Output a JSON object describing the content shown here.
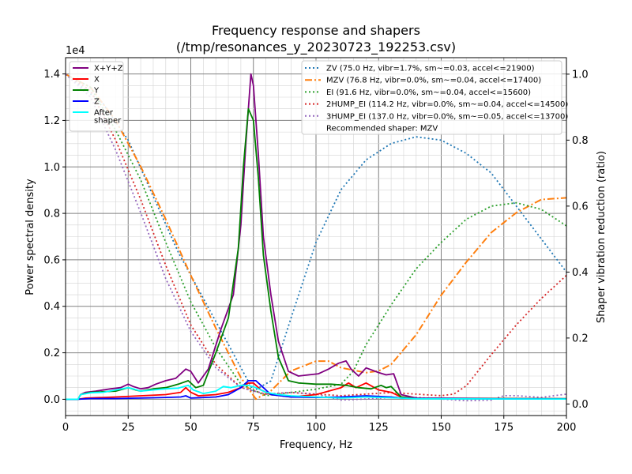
{
  "chart_data": {
    "type": "line",
    "title_line1": "Frequency response and shapers",
    "title_line2": "(/tmp/resonances_y_20230723_192253.csv)",
    "xlabel": "Frequency, Hz",
    "ylabel": "Power spectral density",
    "y2label": "Shaper vibration reduction (ratio)",
    "y_offset_label": "1e4",
    "xlim": [
      0,
      200
    ],
    "ylim": [
      -0.07,
      1.47
    ],
    "y2lim": [
      -0.035,
      1.05
    ],
    "grid": true,
    "x_ticks": [
      0,
      25,
      50,
      75,
      100,
      125,
      150,
      175,
      200
    ],
    "y_ticks": [
      0.0,
      0.2,
      0.4,
      0.6,
      0.8,
      1.0,
      1.2,
      1.4
    ],
    "y2_ticks": [
      0.0,
      0.2,
      0.4,
      0.6,
      0.8,
      1.0
    ],
    "legend_left_placement": "upper-left",
    "legend_right_placement": "upper-right",
    "recommended_note": "Recommended shaper: MZV",
    "psd_series": [
      {
        "name": "X+Y+Z",
        "color": "#800080",
        "values": [
          [
            0,
            0
          ],
          [
            5,
            0
          ],
          [
            6,
            0.02
          ],
          [
            8,
            0.03
          ],
          [
            12,
            0.035
          ],
          [
            18,
            0.045
          ],
          [
            22,
            0.05
          ],
          [
            25,
            0.065
          ],
          [
            27,
            0.055
          ],
          [
            30,
            0.045
          ],
          [
            33,
            0.05
          ],
          [
            36,
            0.065
          ],
          [
            40,
            0.08
          ],
          [
            44,
            0.09
          ],
          [
            48,
            0.13
          ],
          [
            50,
            0.12
          ],
          [
            53,
            0.07
          ],
          [
            57,
            0.13
          ],
          [
            62,
            0.3
          ],
          [
            67,
            0.45
          ],
          [
            70,
            0.75
          ],
          [
            72,
            1.1
          ],
          [
            74,
            1.4
          ],
          [
            75,
            1.35
          ],
          [
            77,
            1.05
          ],
          [
            79,
            0.7
          ],
          [
            82,
            0.45
          ],
          [
            85,
            0.25
          ],
          [
            89,
            0.12
          ],
          [
            93,
            0.1
          ],
          [
            97,
            0.105
          ],
          [
            101,
            0.11
          ],
          [
            105,
            0.13
          ],
          [
            109,
            0.155
          ],
          [
            112,
            0.165
          ],
          [
            114,
            0.13
          ],
          [
            117,
            0.1
          ],
          [
            120,
            0.135
          ],
          [
            125,
            0.115
          ],
          [
            128,
            0.105
          ],
          [
            131,
            0.11
          ],
          [
            134,
            0.02
          ],
          [
            140,
            0.005
          ],
          [
            200,
            0.002
          ]
        ]
      },
      {
        "name": "X",
        "color": "#ff0000",
        "values": [
          [
            0,
            0
          ],
          [
            5,
            0
          ],
          [
            8,
            0.005
          ],
          [
            20,
            0.01
          ],
          [
            30,
            0.015
          ],
          [
            40,
            0.02
          ],
          [
            46,
            0.03
          ],
          [
            48,
            0.05
          ],
          [
            50,
            0.03
          ],
          [
            53,
            0.015
          ],
          [
            60,
            0.02
          ],
          [
            65,
            0.03
          ],
          [
            70,
            0.05
          ],
          [
            73,
            0.07
          ],
          [
            75,
            0.07
          ],
          [
            78,
            0.04
          ],
          [
            82,
            0.02
          ],
          [
            90,
            0.01
          ],
          [
            100,
            0.02
          ],
          [
            110,
            0.05
          ],
          [
            113,
            0.07
          ],
          [
            116,
            0.05
          ],
          [
            120,
            0.07
          ],
          [
            125,
            0.04
          ],
          [
            130,
            0.03
          ],
          [
            134,
            0.01
          ],
          [
            140,
            0.003
          ],
          [
            200,
            0.002
          ]
        ]
      },
      {
        "name": "Y",
        "color": "#008000",
        "values": [
          [
            0,
            0
          ],
          [
            5,
            0
          ],
          [
            6,
            0.02
          ],
          [
            10,
            0.03
          ],
          [
            20,
            0.035
          ],
          [
            25,
            0.05
          ],
          [
            28,
            0.04
          ],
          [
            30,
            0.035
          ],
          [
            35,
            0.045
          ],
          [
            40,
            0.05
          ],
          [
            45,
            0.065
          ],
          [
            49,
            0.08
          ],
          [
            52,
            0.05
          ],
          [
            55,
            0.06
          ],
          [
            60,
            0.2
          ],
          [
            65,
            0.35
          ],
          [
            69,
            0.65
          ],
          [
            71,
            1.0
          ],
          [
            73,
            1.25
          ],
          [
            75,
            1.2
          ],
          [
            77,
            0.95
          ],
          [
            79,
            0.62
          ],
          [
            82,
            0.38
          ],
          [
            85,
            0.18
          ],
          [
            89,
            0.08
          ],
          [
            93,
            0.07
          ],
          [
            100,
            0.065
          ],
          [
            106,
            0.065
          ],
          [
            112,
            0.06
          ],
          [
            117,
            0.05
          ],
          [
            122,
            0.045
          ],
          [
            126,
            0.06
          ],
          [
            128,
            0.05
          ],
          [
            130,
            0.055
          ],
          [
            134,
            0.01
          ],
          [
            140,
            0.003
          ],
          [
            200,
            0.002
          ]
        ]
      },
      {
        "name": "Z",
        "color": "#0000ff",
        "values": [
          [
            0,
            0
          ],
          [
            5,
            0
          ],
          [
            10,
            0.003
          ],
          [
            20,
            0.003
          ],
          [
            30,
            0.005
          ],
          [
            40,
            0.008
          ],
          [
            46,
            0.01
          ],
          [
            48,
            0.015
          ],
          [
            50,
            0.005
          ],
          [
            60,
            0.01
          ],
          [
            65,
            0.02
          ],
          [
            70,
            0.05
          ],
          [
            73,
            0.08
          ],
          [
            76,
            0.08
          ],
          [
            79,
            0.05
          ],
          [
            82,
            0.02
          ],
          [
            90,
            0.01
          ],
          [
            100,
            0.008
          ],
          [
            110,
            0.01
          ],
          [
            120,
            0.015
          ],
          [
            130,
            0.01
          ],
          [
            134,
            0.005
          ],
          [
            140,
            0.003
          ],
          [
            200,
            0.001
          ]
        ]
      },
      {
        "name": "After\nshaper",
        "color": "#00ffff",
        "values": [
          [
            0,
            0
          ],
          [
            5,
            0
          ],
          [
            6,
            0.02
          ],
          [
            10,
            0.028
          ],
          [
            15,
            0.03
          ],
          [
            20,
            0.04
          ],
          [
            25,
            0.05
          ],
          [
            27,
            0.045
          ],
          [
            30,
            0.035
          ],
          [
            35,
            0.04
          ],
          [
            40,
            0.045
          ],
          [
            45,
            0.048
          ],
          [
            49,
            0.06
          ],
          [
            51,
            0.04
          ],
          [
            55,
            0.025
          ],
          [
            60,
            0.035
          ],
          [
            63,
            0.055
          ],
          [
            66,
            0.05
          ],
          [
            70,
            0.06
          ],
          [
            73,
            0.06
          ],
          [
            76,
            0.05
          ],
          [
            80,
            0.03
          ],
          [
            85,
            0.02
          ],
          [
            90,
            0.015
          ],
          [
            100,
            0.01
          ],
          [
            110,
            0.005
          ],
          [
            120,
            0.01
          ],
          [
            134,
            0.005
          ],
          [
            140,
            0.002
          ],
          [
            200,
            0.001
          ]
        ]
      }
    ],
    "shapers": [
      {
        "name": "ZV (75.0 Hz, vibr=1.7%, sm~=0.03, accel<=21900)",
        "color": "#1f77b4",
        "dash": "2,3",
        "width": 1.8,
        "values": [
          [
            0,
            1.0
          ],
          [
            15,
            0.91
          ],
          [
            25,
            0.8
          ],
          [
            35,
            0.63
          ],
          [
            45,
            0.46
          ],
          [
            55,
            0.32
          ],
          [
            65,
            0.18
          ],
          [
            75,
            0.04
          ],
          [
            82,
            0.07
          ],
          [
            90,
            0.26
          ],
          [
            100,
            0.49
          ],
          [
            110,
            0.65
          ],
          [
            120,
            0.74
          ],
          [
            130,
            0.79
          ],
          [
            140,
            0.81
          ],
          [
            150,
            0.8
          ],
          [
            160,
            0.76
          ],
          [
            170,
            0.7
          ],
          [
            180,
            0.6
          ],
          [
            190,
            0.5
          ],
          [
            200,
            0.4
          ]
        ]
      },
      {
        "name": "MZV (76.8 Hz, vibr=0.0%, sm~=0.04, accel<=17400)",
        "color": "#ff7f0e",
        "dash": "9,3,2,3",
        "width": 2.0,
        "values": [
          [
            0,
            1.0
          ],
          [
            10,
            0.96
          ],
          [
            20,
            0.86
          ],
          [
            30,
            0.72
          ],
          [
            40,
            0.56
          ],
          [
            50,
            0.39
          ],
          [
            60,
            0.23
          ],
          [
            70,
            0.08
          ],
          [
            76,
            0.015
          ],
          [
            82,
            0.04
          ],
          [
            90,
            0.1
          ],
          [
            100,
            0.13
          ],
          [
            105,
            0.13
          ],
          [
            110,
            0.11
          ],
          [
            120,
            0.095
          ],
          [
            125,
            0.1
          ],
          [
            130,
            0.12
          ],
          [
            140,
            0.21
          ],
          [
            150,
            0.33
          ],
          [
            160,
            0.43
          ],
          [
            170,
            0.52
          ],
          [
            180,
            0.58
          ],
          [
            190,
            0.62
          ],
          [
            200,
            0.625
          ]
        ]
      },
      {
        "name": "EI (91.6 Hz, vibr=0.0%, sm~=0.04, accel<=15600)",
        "color": "#2ca02c",
        "dash": "2,3",
        "width": 1.8,
        "values": [
          [
            0,
            1.0
          ],
          [
            10,
            0.96
          ],
          [
            20,
            0.83
          ],
          [
            30,
            0.68
          ],
          [
            40,
            0.49
          ],
          [
            50,
            0.31
          ],
          [
            60,
            0.17
          ],
          [
            70,
            0.06
          ],
          [
            80,
            0.025
          ],
          [
            90,
            0.035
          ],
          [
            100,
            0.045
          ],
          [
            110,
            0.06
          ],
          [
            115,
            0.1
          ],
          [
            120,
            0.18
          ],
          [
            130,
            0.3
          ],
          [
            140,
            0.41
          ],
          [
            150,
            0.49
          ],
          [
            160,
            0.56
          ],
          [
            170,
            0.6
          ],
          [
            180,
            0.61
          ],
          [
            190,
            0.59
          ],
          [
            200,
            0.54
          ]
        ]
      },
      {
        "name": "2HUMP_EI (114.2 Hz, vibr=0.0%, sm~=0.04, accel<=14500)",
        "color": "#d62728",
        "dash": "2,3",
        "width": 1.8,
        "values": [
          [
            0,
            1.0
          ],
          [
            10,
            0.95
          ],
          [
            20,
            0.8
          ],
          [
            30,
            0.62
          ],
          [
            40,
            0.42
          ],
          [
            50,
            0.24
          ],
          [
            60,
            0.12
          ],
          [
            70,
            0.05
          ],
          [
            80,
            0.03
          ],
          [
            90,
            0.035
          ],
          [
            100,
            0.03
          ],
          [
            110,
            0.025
          ],
          [
            120,
            0.03
          ],
          [
            130,
            0.035
          ],
          [
            140,
            0.03
          ],
          [
            150,
            0.025
          ],
          [
            155,
            0.03
          ],
          [
            160,
            0.055
          ],
          [
            170,
            0.15
          ],
          [
            180,
            0.24
          ],
          [
            190,
            0.32
          ],
          [
            200,
            0.39
          ]
        ]
      },
      {
        "name": "3HUMP_EI (137.0 Hz, vibr=0.0%, sm~=0.05, accel<=13700)",
        "color": "#9467bd",
        "dash": "2,3",
        "width": 1.8,
        "values": [
          [
            0,
            1.0
          ],
          [
            10,
            0.93
          ],
          [
            20,
            0.77
          ],
          [
            30,
            0.58
          ],
          [
            40,
            0.38
          ],
          [
            50,
            0.22
          ],
          [
            60,
            0.11
          ],
          [
            70,
            0.05
          ],
          [
            80,
            0.03
          ],
          [
            90,
            0.035
          ],
          [
            100,
            0.03
          ],
          [
            110,
            0.012
          ],
          [
            120,
            0.015
          ],
          [
            130,
            0.02
          ],
          [
            140,
            0.02
          ],
          [
            150,
            0.015
          ],
          [
            160,
            0.01
          ],
          [
            170,
            0.012
          ],
          [
            175,
            0.025
          ],
          [
            180,
            0.025
          ],
          [
            190,
            0.02
          ],
          [
            200,
            0.03
          ]
        ]
      }
    ]
  }
}
